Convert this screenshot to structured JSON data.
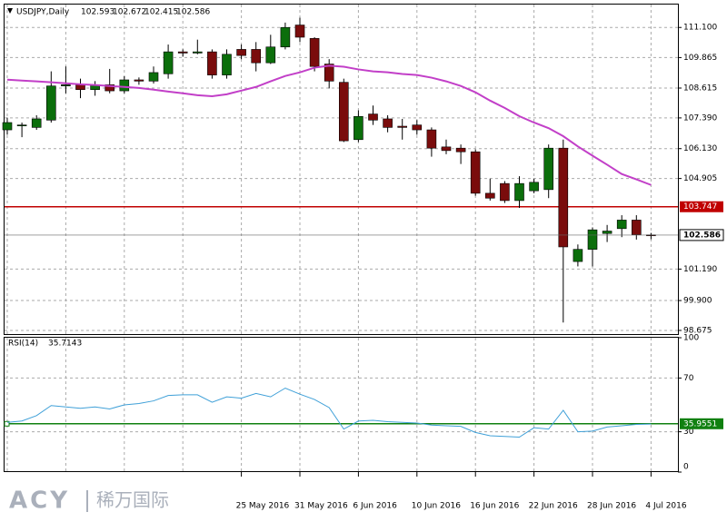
{
  "chart_data": [
    {
      "type": "candlestick",
      "title": "USDJPY,Daily",
      "categories": [
        null,
        null,
        null,
        null,
        null,
        null,
        null,
        null,
        null,
        null,
        null,
        null,
        null,
        null,
        null,
        null,
        "25 May 2016",
        null,
        null,
        null,
        "31 May 2016",
        null,
        null,
        null,
        "6 Jun 2016",
        null,
        null,
        null,
        "10 Jun 2016",
        null,
        null,
        null,
        "16 Jun 2016",
        null,
        null,
        null,
        "22 Jun 2016",
        null,
        null,
        null,
        "28 Jun 2016",
        null,
        null,
        null,
        "4 Jul 2016"
      ],
      "open": [
        106.9,
        107.1,
        107.0,
        107.3,
        108.7,
        108.75,
        108.55,
        108.75,
        108.5,
        108.95,
        108.9,
        109.2,
        110.1,
        110.05,
        110.1,
        109.15,
        110.2,
        110.2,
        109.65,
        110.3,
        111.2,
        110.65,
        109.6,
        108.85,
        106.5,
        107.55,
        107.35,
        107.05,
        107.1,
        106.9,
        106.2,
        106.15,
        106.0,
        104.3,
        104.7,
        104.0,
        104.4,
        104.45,
        106.15,
        101.5,
        102.0,
        102.65,
        102.85,
        103.2,
        102.593
      ],
      "high": [
        107.4,
        107.2,
        107.5,
        109.3,
        109.5,
        109.0,
        108.9,
        109.4,
        109.1,
        109.05,
        109.5,
        110.4,
        110.2,
        110.6,
        110.2,
        110.2,
        110.4,
        110.5,
        110.8,
        111.3,
        111.5,
        110.7,
        109.8,
        109.0,
        107.7,
        107.9,
        107.5,
        107.35,
        107.3,
        107.0,
        106.5,
        106.3,
        106.1,
        104.9,
        104.8,
        105.0,
        104.9,
        106.3,
        106.5,
        102.2,
        102.9,
        103.0,
        103.4,
        103.4,
        102.672
      ],
      "low": [
        106.7,
        106.6,
        106.9,
        107.2,
        108.4,
        108.2,
        108.3,
        108.4,
        108.4,
        108.75,
        108.8,
        109.0,
        109.9,
        110.0,
        109.0,
        109.0,
        109.8,
        109.3,
        109.6,
        110.2,
        110.5,
        109.3,
        108.6,
        106.4,
        106.4,
        107.1,
        106.8,
        106.5,
        106.7,
        105.8,
        105.9,
        105.5,
        104.2,
        104.0,
        103.9,
        103.7,
        104.3,
        104.1,
        99.0,
        101.3,
        101.3,
        102.3,
        102.5,
        102.4,
        102.415
      ],
      "close": [
        107.2,
        107.1,
        107.35,
        108.7,
        108.75,
        108.55,
        108.75,
        108.5,
        108.95,
        108.9,
        109.25,
        110.1,
        110.05,
        110.1,
        109.15,
        110.0,
        109.95,
        109.65,
        110.3,
        111.1,
        110.7,
        109.5,
        108.9,
        106.45,
        107.45,
        107.3,
        107.0,
        107.0,
        106.9,
        106.15,
        106.05,
        106.0,
        104.3,
        104.1,
        104.0,
        104.7,
        104.75,
        106.15,
        102.1,
        102.0,
        102.8,
        102.75,
        103.2,
        102.6,
        102.586
      ],
      "up_color": "#0b6e0b",
      "down_color": "#7a0c0c",
      "ma": {
        "color": "#c23fc8",
        "values": [
          108.96,
          108.92,
          108.89,
          108.85,
          108.81,
          108.77,
          108.74,
          108.7,
          108.66,
          108.62,
          108.55,
          108.47,
          108.4,
          108.32,
          108.28,
          108.36,
          108.51,
          108.66,
          108.89,
          109.11,
          109.26,
          109.45,
          109.53,
          109.49,
          109.38,
          109.3,
          109.26,
          109.19,
          109.15,
          109.04,
          108.89,
          108.7,
          108.44,
          108.1,
          107.8,
          107.46,
          107.2,
          106.97,
          106.64,
          106.22,
          105.84,
          105.47,
          105.09,
          104.87,
          104.64
        ]
      },
      "hlines": [
        {
          "value": 103.747,
          "color": "#c00000"
        }
      ],
      "ylim": [
        98.45,
        112.04
      ],
      "yticks": [
        {
          "value": 111.1,
          "label": "111.100"
        },
        109.865,
        108.615,
        {
          "value": 107.39,
          "label": "107.390"
        },
        {
          "value": 106.13,
          "label": "106.130"
        },
        104.905,
        {
          "value": 101.19,
          "label": "101.190"
        },
        {
          "value": 99.9,
          "label": "99.900"
        },
        98.675
      ],
      "grid": true
    },
    {
      "type": "line",
      "title": "RSI(14)",
      "series": [
        {
          "name": "RSI(14)",
          "color": "#3fa0d8",
          "values": [
            37.0,
            38.0,
            42.0,
            49.5,
            48.5,
            47.5,
            48.5,
            47.0,
            50.0,
            51.0,
            53.0,
            57.0,
            57.5,
            57.5,
            52.0,
            56.0,
            55.0,
            58.5,
            56.0,
            62.5,
            58.0,
            54.0,
            48.0,
            32.0,
            38.0,
            38.5,
            37.5,
            37.0,
            36.5,
            35.0,
            34.5,
            34.0,
            29.5,
            27.0,
            26.5,
            26.0,
            33.0,
            32.0,
            46.0,
            30.0,
            30.5,
            33.5,
            34.5,
            35.5,
            35.7143
          ]
        }
      ],
      "hlines": [
        {
          "value": 35.9551,
          "color": "#108010"
        }
      ],
      "ylim": [
        0,
        100
      ],
      "yticks": [
        100,
        70,
        30,
        0
      ],
      "grid": true
    }
  ],
  "watermark": {
    "brand": "ACY",
    "name": "稀万国际"
  }
}
